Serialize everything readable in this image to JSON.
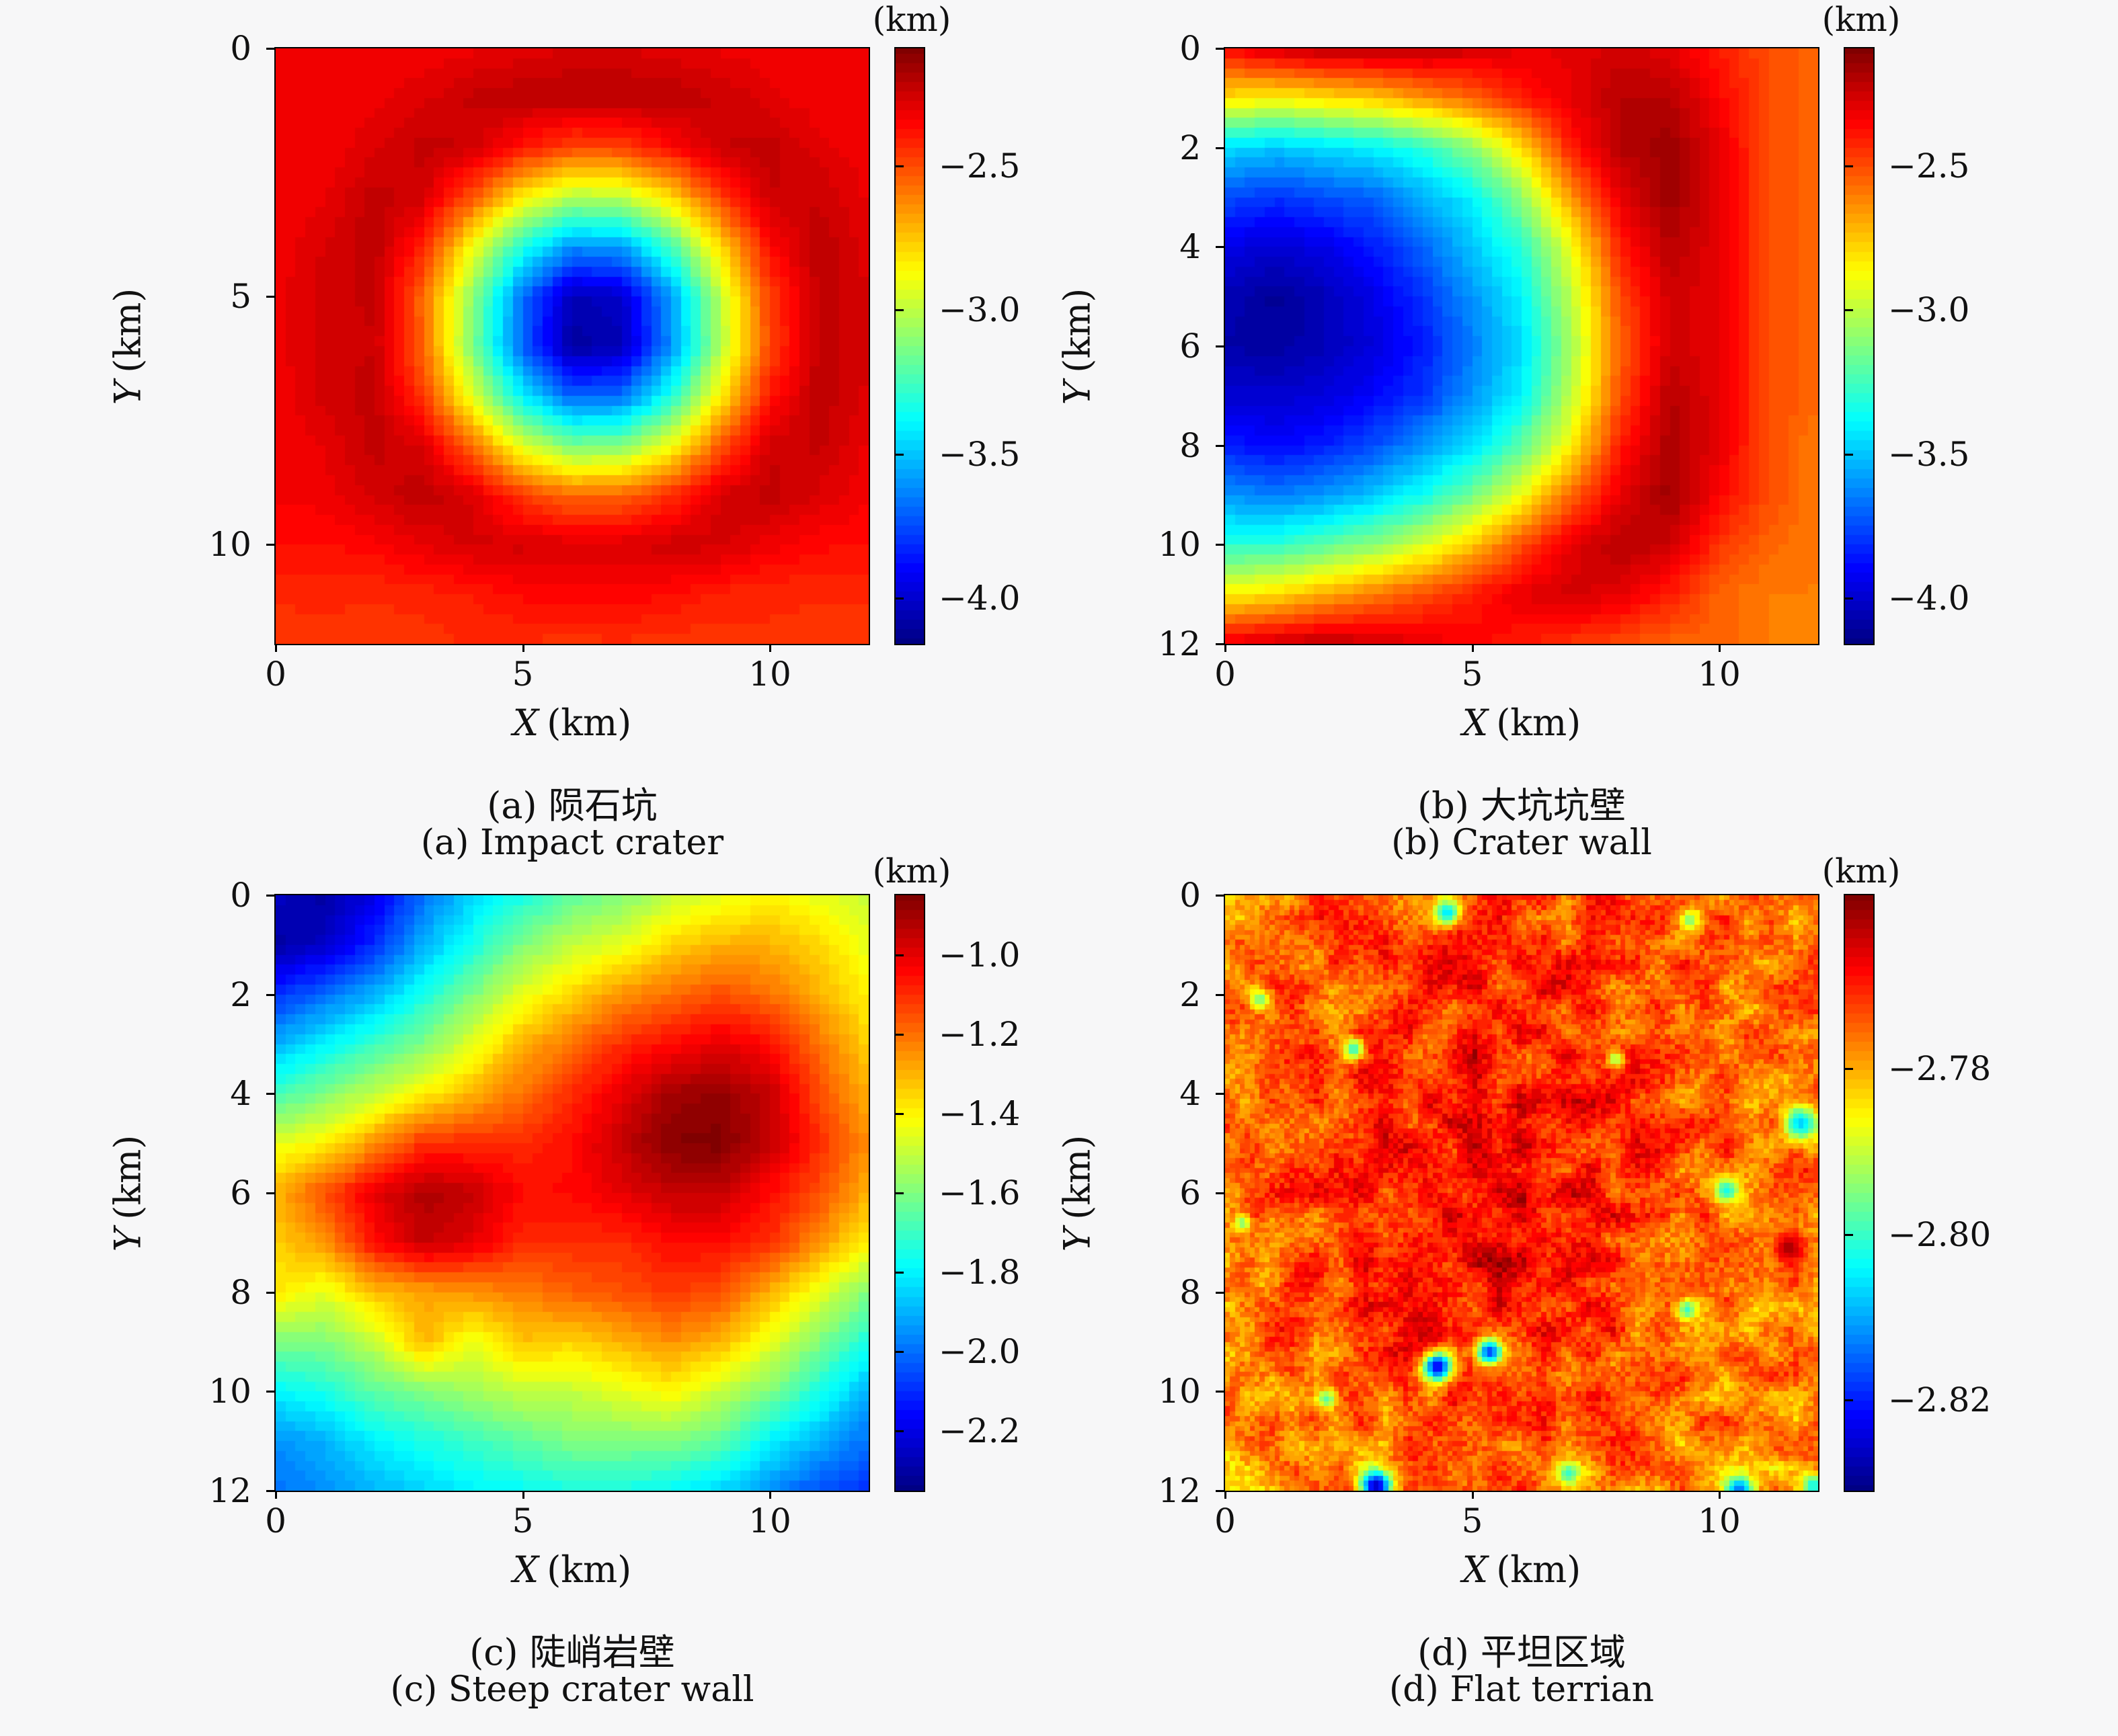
{
  "figure": {
    "background": "#f7f7f8",
    "axis_color": "#000000",
    "xlabel_var": "X",
    "xlabel_unit": "(km)",
    "ylabel_var": "Y",
    "ylabel_unit": "(km)"
  },
  "colormap": {
    "name": "jet",
    "stops": [
      {
        "t": 0.0,
        "c": "#000083"
      },
      {
        "t": 0.125,
        "c": "#0000ff"
      },
      {
        "t": 0.375,
        "c": "#00ffff"
      },
      {
        "t": 0.625,
        "c": "#ffff00"
      },
      {
        "t": 0.875,
        "c": "#ff0000"
      },
      {
        "t": 1.0,
        "c": "#800000"
      }
    ],
    "levels": 64
  },
  "chart_data": [
    {
      "type": "heatmap",
      "panel": "a",
      "caption_zh": "(a) 陨石坑",
      "caption_en": "(a) Impact crater",
      "xlabel_var": "X",
      "xlabel_unit": "(km)",
      "ylabel_var": "Y",
      "ylabel_unit": "(km)",
      "x_range": [
        0,
        12
      ],
      "y_range": [
        0,
        12
      ],
      "xticks": [
        0,
        5,
        10
      ],
      "xtick_labels": [
        "0",
        "5",
        "10"
      ],
      "yticks": [
        0,
        5,
        10
      ],
      "ytick_labels": [
        "0",
        "5",
        "10"
      ],
      "render_cells": 60,
      "colorbar": {
        "title": "(km)",
        "vmin": -4.16,
        "vmax": -2.09,
        "ticks": [
          -2.5,
          -3.0,
          -3.5,
          -4.0
        ],
        "tick_labels": [
          "−2.5",
          "−3.0",
          "−3.5",
          "−4.0"
        ]
      },
      "grid_spacing_km": 1,
      "values": [
        [
          -2.33,
          -2.33,
          -2.33,
          -2.33,
          -2.31,
          -2.29,
          -2.27,
          -2.27,
          -2.29,
          -2.31,
          -2.33,
          -2.33,
          -2.33
        ],
        [
          -2.33,
          -2.33,
          -2.32,
          -2.28,
          -2.23,
          -2.21,
          -2.2,
          -2.2,
          -2.21,
          -2.24,
          -2.29,
          -2.33,
          -2.33
        ],
        [
          -2.33,
          -2.33,
          -2.28,
          -2.22,
          -2.25,
          -2.39,
          -2.49,
          -2.48,
          -2.36,
          -2.24,
          -2.22,
          -2.29,
          -2.33
        ],
        [
          -2.33,
          -2.31,
          -2.22,
          -2.26,
          -2.52,
          -2.84,
          -3.02,
          -3.0,
          -2.79,
          -2.47,
          -2.24,
          -2.24,
          -2.31
        ],
        [
          -2.33,
          -2.27,
          -2.21,
          -2.42,
          -2.89,
          -3.33,
          -3.61,
          -3.58,
          -3.25,
          -2.79,
          -2.36,
          -2.21,
          -2.29
        ],
        [
          -2.32,
          -2.25,
          -2.23,
          -2.57,
          -3.11,
          -3.68,
          -4.05,
          -4.02,
          -3.58,
          -3.0,
          -2.47,
          -2.22,
          -2.27
        ],
        [
          -2.32,
          -2.25,
          -2.24,
          -2.56,
          -3.14,
          -3.71,
          -4.1,
          -4.05,
          -3.61,
          -3.02,
          -2.49,
          -2.22,
          -2.27
        ],
        [
          -2.33,
          -2.26,
          -2.22,
          -2.47,
          -2.94,
          -3.41,
          -3.71,
          -3.68,
          -3.33,
          -2.84,
          -2.39,
          -2.21,
          -2.28
        ],
        [
          -2.33,
          -2.3,
          -2.22,
          -2.28,
          -2.57,
          -2.94,
          -3.14,
          -3.12,
          -2.89,
          -2.52,
          -2.25,
          -2.23,
          -2.31
        ],
        [
          -2.33,
          -2.32,
          -2.26,
          -2.21,
          -2.28,
          -2.47,
          -2.56,
          -2.55,
          -2.44,
          -2.26,
          -2.22,
          -2.28,
          -2.33
        ],
        [
          -2.37,
          -2.37,
          -2.35,
          -2.3,
          -2.26,
          -2.26,
          -2.28,
          -2.28,
          -2.25,
          -2.26,
          -2.32,
          -2.36,
          -2.37
        ],
        [
          -2.43,
          -2.43,
          -2.43,
          -2.42,
          -2.4,
          -2.36,
          -2.35,
          -2.35,
          -2.37,
          -2.41,
          -2.43,
          -2.43,
          -2.43
        ],
        [
          -2.45,
          -2.44,
          -2.46,
          -2.45,
          -2.43,
          -2.44,
          -2.45,
          -2.44,
          -2.46,
          -2.45,
          -2.44,
          -2.45,
          -2.46
        ]
      ]
    },
    {
      "type": "heatmap",
      "panel": "b",
      "caption_zh": "(b) 大坑坑壁",
      "caption_en": "(b) Crater wall",
      "xlabel_var": "X",
      "xlabel_unit": "(km)",
      "ylabel_var": "Y",
      "ylabel_unit": "(km)",
      "x_range": [
        0,
        12
      ],
      "y_range": [
        0,
        12
      ],
      "xticks": [
        0,
        5,
        10
      ],
      "xtick_labels": [
        "0",
        "5",
        "10"
      ],
      "yticks": [
        0,
        2,
        4,
        6,
        8,
        10,
        12
      ],
      "ytick_labels": [
        "0",
        "2",
        "4",
        "6",
        "8",
        "10",
        "12"
      ],
      "render_cells": 60,
      "colorbar": {
        "title": "(km)",
        "vmin": -4.16,
        "vmax": -2.09,
        "ticks": [
          -2.5,
          -3.0,
          -3.5,
          -4.0
        ],
        "tick_labels": [
          "−2.5",
          "−3.0",
          "−3.5",
          "−4.0"
        ]
      },
      "grid_spacing_km": 1,
      "values": [
        [
          -2.35,
          -2.25,
          -2.2,
          -2.2,
          -2.2,
          -2.25,
          -2.3,
          -2.3,
          -2.25,
          -2.3,
          -2.4,
          -2.5,
          -2.55
        ],
        [
          -2.8,
          -2.85,
          -2.8,
          -2.75,
          -2.65,
          -2.55,
          -2.4,
          -2.3,
          -2.2,
          -2.2,
          -2.35,
          -2.5,
          -2.55
        ],
        [
          -3.45,
          -3.5,
          -3.45,
          -3.4,
          -3.3,
          -3.1,
          -2.8,
          -2.4,
          -2.2,
          -2.15,
          -2.3,
          -2.5,
          -2.55
        ],
        [
          -3.75,
          -3.8,
          -3.75,
          -3.7,
          -3.55,
          -3.4,
          -3.1,
          -2.65,
          -2.3,
          -2.15,
          -2.3,
          -2.5,
          -2.55
        ],
        [
          -3.95,
          -4.0,
          -3.95,
          -3.85,
          -3.7,
          -3.5,
          -3.3,
          -2.9,
          -2.4,
          -2.2,
          -2.3,
          -2.5,
          -2.55
        ],
        [
          -4.05,
          -4.12,
          -4.05,
          -3.95,
          -3.8,
          -3.6,
          -3.4,
          -3.0,
          -2.5,
          -2.25,
          -2.3,
          -2.5,
          -2.55
        ],
        [
          -4.08,
          -4.1,
          -4.05,
          -3.98,
          -3.85,
          -3.65,
          -3.45,
          -3.05,
          -2.55,
          -2.25,
          -2.3,
          -2.5,
          -2.55
        ],
        [
          -4.0,
          -4.0,
          -3.98,
          -3.9,
          -3.8,
          -3.6,
          -3.4,
          -3.0,
          -2.5,
          -2.2,
          -2.3,
          -2.5,
          -2.55
        ],
        [
          -3.85,
          -3.9,
          -3.85,
          -3.75,
          -3.6,
          -3.45,
          -3.2,
          -2.85,
          -2.4,
          -2.18,
          -2.3,
          -2.5,
          -2.6
        ],
        [
          -3.6,
          -3.65,
          -3.6,
          -3.5,
          -3.35,
          -3.15,
          -2.9,
          -2.55,
          -2.3,
          -2.15,
          -2.35,
          -2.5,
          -2.6
        ],
        [
          -3.3,
          -3.3,
          -3.2,
          -3.1,
          -2.95,
          -2.75,
          -2.5,
          -2.3,
          -2.2,
          -2.25,
          -2.45,
          -2.55,
          -2.6
        ],
        [
          -2.85,
          -2.8,
          -2.7,
          -2.6,
          -2.5,
          -2.4,
          -2.3,
          -2.25,
          -2.3,
          -2.4,
          -2.55,
          -2.6,
          -2.6
        ],
        [
          -2.3,
          -2.25,
          -2.2,
          -2.25,
          -2.3,
          -2.35,
          -2.4,
          -2.45,
          -2.5,
          -2.55,
          -2.55,
          -2.6,
          -2.6
        ]
      ]
    },
    {
      "type": "heatmap",
      "panel": "c",
      "caption_zh": "(c) 陡峭岩壁",
      "caption_en": "(c) Steep crater wall",
      "xlabel_var": "X",
      "xlabel_unit": "(km)",
      "ylabel_var": "Y",
      "ylabel_unit": "(km)",
      "x_range": [
        0,
        12
      ],
      "y_range": [
        0,
        12
      ],
      "xticks": [
        0,
        5,
        10
      ],
      "xtick_labels": [
        "0",
        "5",
        "10"
      ],
      "yticks": [
        0,
        2,
        4,
        6,
        8,
        10,
        12
      ],
      "ytick_labels": [
        "0",
        "2",
        "4",
        "6",
        "8",
        "10",
        "12"
      ],
      "render_cells": 60,
      "colorbar": {
        "title": "(km)",
        "vmin": -2.35,
        "vmax": -0.85,
        "ticks": [
          -1.0,
          -1.2,
          -1.4,
          -1.6,
          -1.8,
          -2.0,
          -2.2
        ],
        "tick_labels": [
          "−1.0",
          "−1.2",
          "−1.4",
          "−1.6",
          "−1.8",
          "−2.0",
          "−2.2"
        ]
      },
      "grid_spacing_km": 1,
      "values": [
        [
          -2.25,
          -2.3,
          -2.2,
          -2.0,
          -1.85,
          -1.75,
          -1.65,
          -1.6,
          -1.5,
          -1.45,
          -1.4,
          -1.45,
          -1.5
        ],
        [
          -2.3,
          -2.25,
          -2.1,
          -1.9,
          -1.75,
          -1.6,
          -1.5,
          -1.45,
          -1.35,
          -1.3,
          -1.3,
          -1.35,
          -1.45
        ],
        [
          -2.1,
          -2.0,
          -1.9,
          -1.75,
          -1.6,
          -1.45,
          -1.35,
          -1.25,
          -1.2,
          -1.15,
          -1.2,
          -1.3,
          -1.4
        ],
        [
          -1.9,
          -1.8,
          -1.7,
          -1.6,
          -1.45,
          -1.3,
          -1.2,
          -1.1,
          -1.05,
          -1.0,
          -1.05,
          -1.2,
          -1.35
        ],
        [
          -1.7,
          -1.6,
          -1.5,
          -1.4,
          -1.3,
          -1.2,
          -1.1,
          -1.0,
          -0.9,
          -0.88,
          -0.95,
          -1.15,
          -1.3
        ],
        [
          -1.45,
          -1.4,
          -1.25,
          -1.1,
          -1.1,
          -1.1,
          -1.05,
          -0.95,
          -0.86,
          -0.85,
          -0.95,
          -1.1,
          -1.25
        ],
        [
          -1.3,
          -1.15,
          -1.0,
          -0.92,
          -0.95,
          -1.05,
          -1.05,
          -1.0,
          -0.95,
          -0.95,
          -1.05,
          -1.15,
          -1.3
        ],
        [
          -1.35,
          -1.25,
          -1.05,
          -0.95,
          -1.0,
          -1.1,
          -1.1,
          -1.1,
          -1.05,
          -1.05,
          -1.1,
          -1.25,
          -1.4
        ],
        [
          -1.38,
          -1.45,
          -1.32,
          -1.28,
          -1.25,
          -1.22,
          -1.18,
          -1.15,
          -1.12,
          -1.15,
          -1.3,
          -1.45,
          -1.6
        ],
        [
          -1.6,
          -1.6,
          -1.5,
          -1.3,
          -1.45,
          -1.32,
          -1.35,
          -1.3,
          -1.25,
          -1.3,
          -1.45,
          -1.6,
          -1.75
        ],
        [
          -1.8,
          -1.75,
          -1.65,
          -1.6,
          -1.55,
          -1.5,
          -1.5,
          -1.45,
          -1.4,
          -1.5,
          -1.6,
          -1.75,
          -1.9
        ],
        [
          -1.95,
          -1.9,
          -1.8,
          -1.75,
          -1.7,
          -1.65,
          -1.6,
          -1.6,
          -1.6,
          -1.65,
          -1.8,
          -1.9,
          -2.0
        ],
        [
          -2.0,
          -1.95,
          -1.9,
          -1.85,
          -1.8,
          -1.78,
          -1.75,
          -1.75,
          -1.78,
          -1.85,
          -1.95,
          -2.05,
          -2.1
        ]
      ]
    },
    {
      "type": "heatmap",
      "panel": "d",
      "caption_zh": "(d) 平坦区域",
      "caption_en": "(d) Flat terrian",
      "xlabel_var": "X",
      "xlabel_unit": "(km)",
      "ylabel_var": "Y",
      "ylabel_unit": "(km)",
      "x_range": [
        0,
        12
      ],
      "y_range": [
        0,
        12
      ],
      "xticks": [
        0,
        5,
        10
      ],
      "xtick_labels": [
        "0",
        "5",
        "10"
      ],
      "yticks": [
        0,
        2,
        4,
        6,
        8,
        10,
        12
      ],
      "ytick_labels": [
        "0",
        "2",
        "4",
        "6",
        "8",
        "10",
        "12"
      ],
      "render_cells": 120,
      "colorbar": {
        "title": "(km)",
        "vmin": -2.831,
        "vmax": -2.759,
        "ticks": [
          -2.78,
          -2.8,
          -2.82
        ],
        "tick_labels": [
          "−2.78",
          "−2.80",
          "−2.82"
        ]
      },
      "grid_spacing_km": 1,
      "noise": {
        "coarse_amp": 0.0065,
        "fine_amp": 0.0035,
        "coarse_cells": 26,
        "seed": 3
      },
      "spots": [
        {
          "x": 4.5,
          "y": 0.35,
          "v": -2.806,
          "r": 0.28
        },
        {
          "x": 9.4,
          "y": 0.5,
          "v": -2.795,
          "r": 0.22
        },
        {
          "x": 0.7,
          "y": 2.1,
          "v": -2.796,
          "r": 0.2
        },
        {
          "x": 2.6,
          "y": 3.1,
          "v": -2.801,
          "r": 0.22
        },
        {
          "x": 7.9,
          "y": 3.3,
          "v": -2.793,
          "r": 0.18
        },
        {
          "x": 11.65,
          "y": 4.6,
          "v": -2.807,
          "r": 0.34
        },
        {
          "x": 10.15,
          "y": 5.95,
          "v": -2.803,
          "r": 0.26
        },
        {
          "x": 0.35,
          "y": 6.6,
          "v": -2.795,
          "r": 0.18
        },
        {
          "x": 11.4,
          "y": 7.1,
          "v": -2.762,
          "r": 0.3
        },
        {
          "x": 9.35,
          "y": 8.35,
          "v": -2.8,
          "r": 0.22
        },
        {
          "x": 4.3,
          "y": 9.5,
          "v": -2.824,
          "r": 0.3
        },
        {
          "x": 5.35,
          "y": 9.2,
          "v": -2.818,
          "r": 0.26
        },
        {
          "x": 2.05,
          "y": 10.15,
          "v": -2.798,
          "r": 0.2
        },
        {
          "x": 3.05,
          "y": 11.9,
          "v": -2.826,
          "r": 0.32
        },
        {
          "x": 6.95,
          "y": 11.65,
          "v": -2.8,
          "r": 0.22
        },
        {
          "x": 10.4,
          "y": 12.0,
          "v": -2.815,
          "r": 0.3
        },
        {
          "x": 11.9,
          "y": 11.9,
          "v": -2.804,
          "r": 0.24
        }
      ],
      "values": [
        [
          -2.776,
          -2.776,
          -2.775,
          -2.774,
          -2.774,
          -2.772,
          -2.772,
          -2.773,
          -2.775,
          -2.775,
          -2.776,
          -2.776,
          -2.777
        ],
        [
          -2.776,
          -2.775,
          -2.775,
          -2.774,
          -2.773,
          -2.771,
          -2.771,
          -2.772,
          -2.774,
          -2.775,
          -2.776,
          -2.776,
          -2.777
        ],
        [
          -2.777,
          -2.776,
          -2.775,
          -2.774,
          -2.772,
          -2.77,
          -2.77,
          -2.771,
          -2.773,
          -2.775,
          -2.776,
          -2.777,
          -2.777
        ],
        [
          -2.777,
          -2.776,
          -2.774,
          -2.773,
          -2.771,
          -2.769,
          -2.769,
          -2.77,
          -2.772,
          -2.774,
          -2.776,
          -2.777,
          -2.777
        ],
        [
          -2.776,
          -2.775,
          -2.774,
          -2.772,
          -2.77,
          -2.768,
          -2.768,
          -2.769,
          -2.771,
          -2.774,
          -2.776,
          -2.776,
          -2.776
        ],
        [
          -2.776,
          -2.775,
          -2.773,
          -2.771,
          -2.769,
          -2.767,
          -2.767,
          -2.768,
          -2.771,
          -2.773,
          -2.775,
          -2.776,
          -2.776
        ],
        [
          -2.776,
          -2.774,
          -2.772,
          -2.77,
          -2.768,
          -2.766,
          -2.767,
          -2.768,
          -2.77,
          -2.773,
          -2.775,
          -2.776,
          -2.776
        ],
        [
          -2.776,
          -2.774,
          -2.772,
          -2.77,
          -2.768,
          -2.767,
          -2.768,
          -2.769,
          -2.771,
          -2.774,
          -2.775,
          -2.776,
          -2.776
        ],
        [
          -2.776,
          -2.775,
          -2.773,
          -2.771,
          -2.77,
          -2.769,
          -2.769,
          -2.77,
          -2.772,
          -2.774,
          -2.776,
          -2.776,
          -2.777
        ],
        [
          -2.777,
          -2.775,
          -2.774,
          -2.772,
          -2.771,
          -2.77,
          -2.771,
          -2.772,
          -2.773,
          -2.775,
          -2.776,
          -2.777,
          -2.777
        ],
        [
          -2.777,
          -2.776,
          -2.775,
          -2.774,
          -2.773,
          -2.772,
          -2.772,
          -2.773,
          -2.774,
          -2.776,
          -2.777,
          -2.777,
          -2.778
        ],
        [
          -2.778,
          -2.777,
          -2.776,
          -2.775,
          -2.774,
          -2.774,
          -2.774,
          -2.774,
          -2.776,
          -2.777,
          -2.777,
          -2.778,
          -2.778
        ],
        [
          -2.779,
          -2.778,
          -2.778,
          -2.777,
          -2.776,
          -2.776,
          -2.776,
          -2.777,
          -2.777,
          -2.778,
          -2.778,
          -2.779,
          -2.779
        ]
      ]
    }
  ]
}
